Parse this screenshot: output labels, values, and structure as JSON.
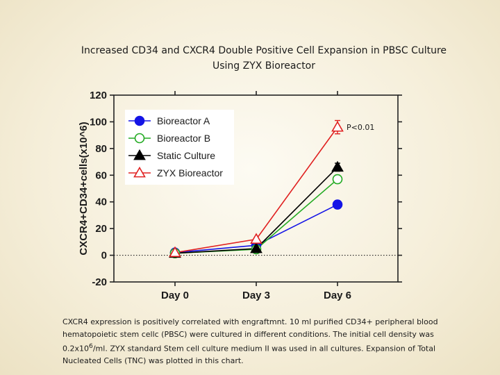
{
  "title_line1": "Increased CD34 and CXCR4 Double Positive Cell Expansion in PBSC Culture",
  "title_line2": "Using ZYX Bioreactor",
  "caption": {
    "part1": "CXCR4 expression is positively correlated with engraftmnt. 10 ml purified CD34+ peripheral blood hematopoietic stem cellc (PBSC) were cultured in different conditions. The initial cell density was 0.2x10",
    "sup": "6",
    "part2": "/ml. ZYX standard Stem cell culture medium II was used in all cultures. Expansion of Total Nucleated Cells (TNC) was plotted in this chart."
  },
  "chart_data": {
    "type": "line",
    "categories": [
      "Day 0",
      "Day 3",
      "Day 6"
    ],
    "ylabel": "CXCR4+CD34+cells(x10^6)",
    "xlabel": "",
    "ylim": [
      -20,
      120
    ],
    "yticks": [
      -20,
      0,
      20,
      40,
      60,
      80,
      100,
      120
    ],
    "reference_line": 0,
    "legend_position": "top-left",
    "annotation": {
      "text": "P<0.01",
      "series": "ZYX Bioreactor",
      "category": "Day 6"
    },
    "series": [
      {
        "name": "Bioreactor A",
        "values": [
          2,
          7.5,
          38
        ],
        "errors": [
          0,
          1,
          3
        ],
        "marker": "circle-filled",
        "color": "#1414e6"
      },
      {
        "name": "Bioreactor B",
        "values": [
          1.5,
          4.5,
          57
        ],
        "errors": [
          0,
          1,
          3
        ],
        "marker": "circle-open",
        "color": "#22aa22"
      },
      {
        "name": "Static Culture",
        "values": [
          1.5,
          5,
          66
        ],
        "errors": [
          0,
          1,
          3
        ],
        "marker": "triangle-filled",
        "color": "#000000"
      },
      {
        "name": "ZYX Bioreactor",
        "values": [
          2,
          12,
          96
        ],
        "errors": [
          0,
          1,
          5
        ],
        "marker": "triangle-open",
        "color": "#e02020"
      }
    ]
  }
}
